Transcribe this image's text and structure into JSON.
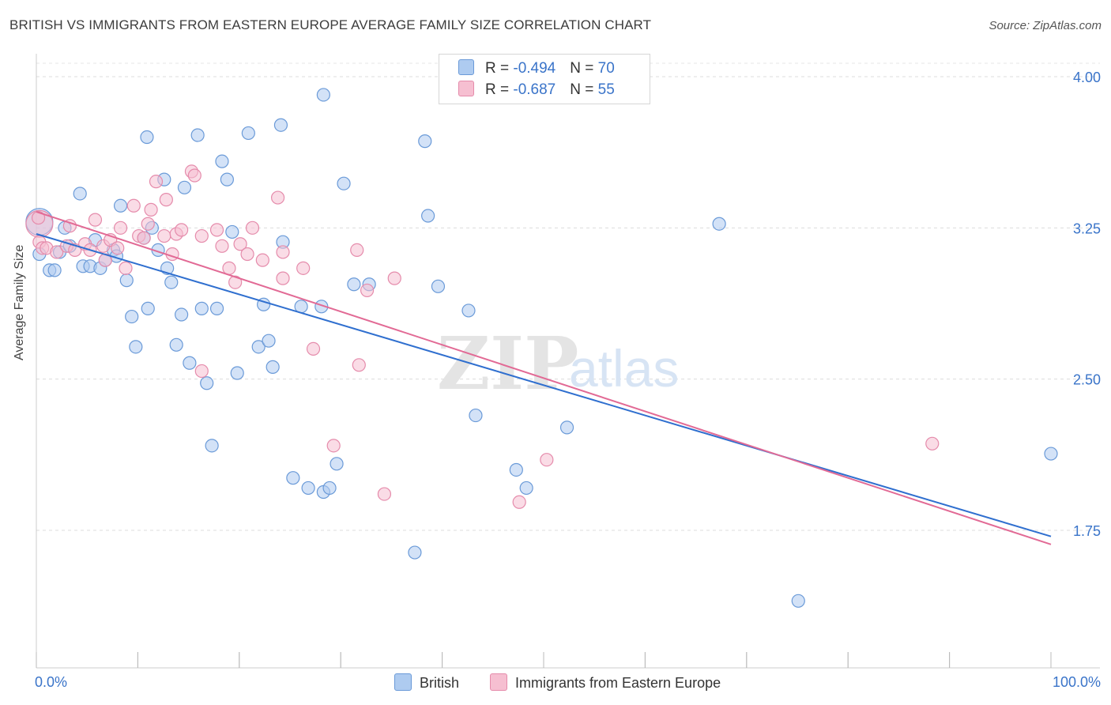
{
  "title": "BRITISH VS IMMIGRANTS FROM EASTERN EUROPE AVERAGE FAMILY SIZE CORRELATION CHART",
  "source": "Source: ZipAtlas.com",
  "watermark": {
    "zip": "ZIP",
    "atlas": "atlas"
  },
  "colors": {
    "british_fill": "#aecbf0",
    "british_stroke": "#6a9ad8",
    "british_line": "#2f6fcf",
    "imm_fill": "#f6bfd1",
    "imm_stroke": "#e58bab",
    "imm_line": "#e26a95",
    "tick_label": "#3a74c9"
  },
  "legend": {
    "british": {
      "r_label": "R = ",
      "r_value": "-0.494",
      "n_label": "N = ",
      "n_value": "70"
    },
    "immigrants": {
      "r_label": "R = ",
      "r_value": "-0.687",
      "n_label": "N = ",
      "n_value": "55"
    }
  },
  "bottom_legend": {
    "british": "British",
    "immigrants": "Immigrants from Eastern Europe"
  },
  "chart_data": {
    "type": "scatter",
    "ylabel": "Average Family Size",
    "xlabel": "",
    "x_tick_labels": [
      "0.0%",
      "100.0%"
    ],
    "y_ticks": [
      1.75,
      2.5,
      3.25,
      4.0
    ],
    "y_tick_labels": [
      "1.75",
      "2.50",
      "3.25",
      "4.00"
    ],
    "xlim": [
      0,
      100
    ],
    "ylim": [
      1.0,
      4.1
    ],
    "grid": "horizontal dashed",
    "legend_position": "top-center",
    "series": [
      {
        "name": "British",
        "r": -0.494,
        "n": 70,
        "trend": [
          [
            0,
            3.22
          ],
          [
            100,
            1.72
          ]
        ],
        "points": [
          [
            0.3,
            3.28
          ],
          [
            0.3,
            3.12
          ],
          [
            1.3,
            3.04
          ],
          [
            1.8,
            3.04
          ],
          [
            2.3,
            3.13
          ],
          [
            2.8,
            3.25
          ],
          [
            3.3,
            3.16
          ],
          [
            4.3,
            3.42
          ],
          [
            4.6,
            3.06
          ],
          [
            5.3,
            3.06
          ],
          [
            5.8,
            3.19
          ],
          [
            6.3,
            3.05
          ],
          [
            6.8,
            3.09
          ],
          [
            7.6,
            3.14
          ],
          [
            7.9,
            3.11
          ],
          [
            8.3,
            3.36
          ],
          [
            8.9,
            2.99
          ],
          [
            9.4,
            2.81
          ],
          [
            9.8,
            2.66
          ],
          [
            10.6,
            3.2
          ],
          [
            10.9,
            3.7
          ],
          [
            11.4,
            3.25
          ],
          [
            12.0,
            3.14
          ],
          [
            12.6,
            3.49
          ],
          [
            12.9,
            3.05
          ],
          [
            13.3,
            2.98
          ],
          [
            13.8,
            2.67
          ],
          [
            14.3,
            2.82
          ],
          [
            14.6,
            3.45
          ],
          [
            15.1,
            2.58
          ],
          [
            15.9,
            3.71
          ],
          [
            16.3,
            2.85
          ],
          [
            16.8,
            2.48
          ],
          [
            17.3,
            2.17
          ],
          [
            17.8,
            2.85
          ],
          [
            18.3,
            3.58
          ],
          [
            18.8,
            3.49
          ],
          [
            19.3,
            3.23
          ],
          [
            19.8,
            2.53
          ],
          [
            20.9,
            3.72
          ],
          [
            21.9,
            2.66
          ],
          [
            22.4,
            2.87
          ],
          [
            22.9,
            2.69
          ],
          [
            23.3,
            2.56
          ],
          [
            24.1,
            3.76
          ],
          [
            24.3,
            3.18
          ],
          [
            25.3,
            2.01
          ],
          [
            26.1,
            2.86
          ],
          [
            26.8,
            1.96
          ],
          [
            28.1,
            2.86
          ],
          [
            28.3,
            3.91
          ],
          [
            28.3,
            1.94
          ],
          [
            28.9,
            1.96
          ],
          [
            29.6,
            2.08
          ],
          [
            30.3,
            3.47
          ],
          [
            31.3,
            2.97
          ],
          [
            32.8,
            2.97
          ],
          [
            38.3,
            3.68
          ],
          [
            38.6,
            3.31
          ],
          [
            39.6,
            2.96
          ],
          [
            42.6,
            2.84
          ],
          [
            43.3,
            2.32
          ],
          [
            47.3,
            2.05
          ],
          [
            48.3,
            1.96
          ],
          [
            52.3,
            2.26
          ],
          [
            67.3,
            3.27
          ],
          [
            75.1,
            1.4
          ],
          [
            100.0,
            2.13
          ],
          [
            37.3,
            1.64
          ],
          [
            11.0,
            2.85
          ]
        ]
      },
      {
        "name": "Immigrants from Eastern Europe",
        "r": -0.687,
        "n": 55,
        "trend": [
          [
            0,
            3.33
          ],
          [
            100,
            1.68
          ]
        ],
        "points": [
          [
            0.3,
            3.27
          ],
          [
            0.3,
            3.18
          ],
          [
            0.6,
            3.15
          ],
          [
            1.0,
            3.15
          ],
          [
            2.0,
            3.13
          ],
          [
            3.0,
            3.16
          ],
          [
            3.3,
            3.26
          ],
          [
            3.8,
            3.14
          ],
          [
            4.8,
            3.17
          ],
          [
            5.3,
            3.14
          ],
          [
            5.8,
            3.29
          ],
          [
            6.6,
            3.16
          ],
          [
            6.8,
            3.09
          ],
          [
            7.3,
            3.19
          ],
          [
            8.0,
            3.15
          ],
          [
            8.3,
            3.25
          ],
          [
            8.8,
            3.05
          ],
          [
            9.6,
            3.36
          ],
          [
            10.1,
            3.21
          ],
          [
            10.6,
            3.2
          ],
          [
            11.0,
            3.27
          ],
          [
            11.3,
            3.34
          ],
          [
            11.8,
            3.48
          ],
          [
            12.6,
            3.21
          ],
          [
            12.8,
            3.39
          ],
          [
            13.4,
            3.12
          ],
          [
            13.8,
            3.22
          ],
          [
            14.3,
            3.24
          ],
          [
            15.3,
            3.53
          ],
          [
            15.6,
            3.51
          ],
          [
            16.3,
            3.21
          ],
          [
            16.3,
            2.54
          ],
          [
            17.8,
            3.24
          ],
          [
            18.3,
            3.16
          ],
          [
            19.0,
            3.05
          ],
          [
            19.6,
            2.98
          ],
          [
            20.1,
            3.17
          ],
          [
            20.8,
            3.12
          ],
          [
            21.3,
            3.25
          ],
          [
            22.3,
            3.09
          ],
          [
            23.8,
            3.4
          ],
          [
            24.3,
            3.13
          ],
          [
            24.3,
            3.0
          ],
          [
            26.3,
            3.05
          ],
          [
            27.3,
            2.65
          ],
          [
            29.3,
            2.17
          ],
          [
            31.6,
            3.14
          ],
          [
            31.8,
            2.57
          ],
          [
            32.6,
            2.94
          ],
          [
            34.3,
            1.93
          ],
          [
            35.3,
            3.0
          ],
          [
            47.6,
            1.89
          ],
          [
            50.3,
            2.1
          ],
          [
            88.3,
            2.18
          ],
          [
            0.2,
            3.3
          ]
        ]
      }
    ]
  }
}
